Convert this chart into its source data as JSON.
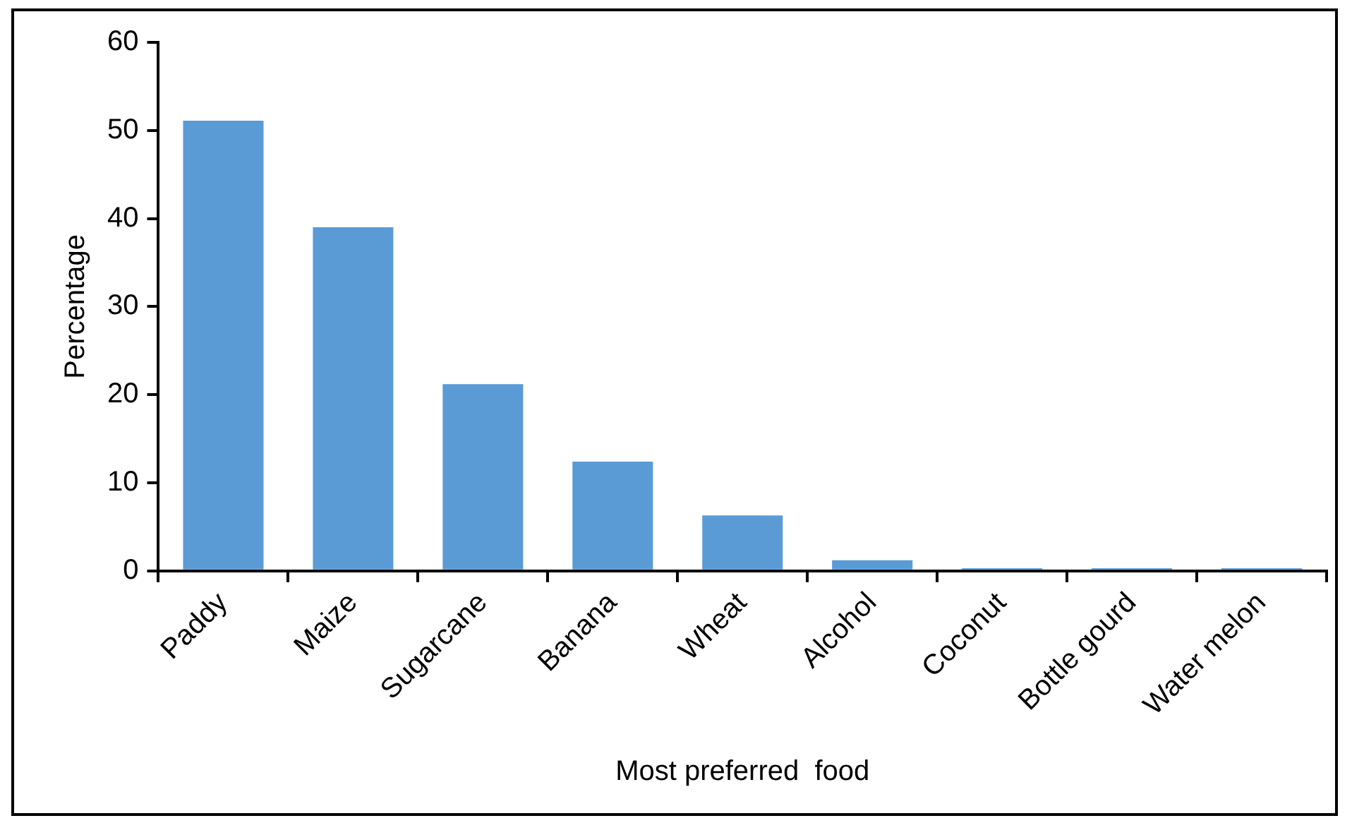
{
  "chart_data": {
    "type": "bar",
    "xlabel": "Most preferred  food",
    "ylabel": "Percentage",
    "categories": [
      "Paddy",
      "Maize",
      "Sugarcane",
      "Banana",
      "Wheat",
      "Alcohol",
      "Coconut",
      "Bottle gourd",
      "Water melon"
    ],
    "values": [
      51.1,
      39.0,
      21.2,
      12.4,
      6.3,
      1.2,
      0.3,
      0.3,
      0.3
    ],
    "color": "#5b9bd5",
    "ylim": [
      0,
      60
    ],
    "yticks": [
      0,
      10,
      20,
      30,
      40,
      50,
      60
    ],
    "grid": false,
    "legend": false
  }
}
